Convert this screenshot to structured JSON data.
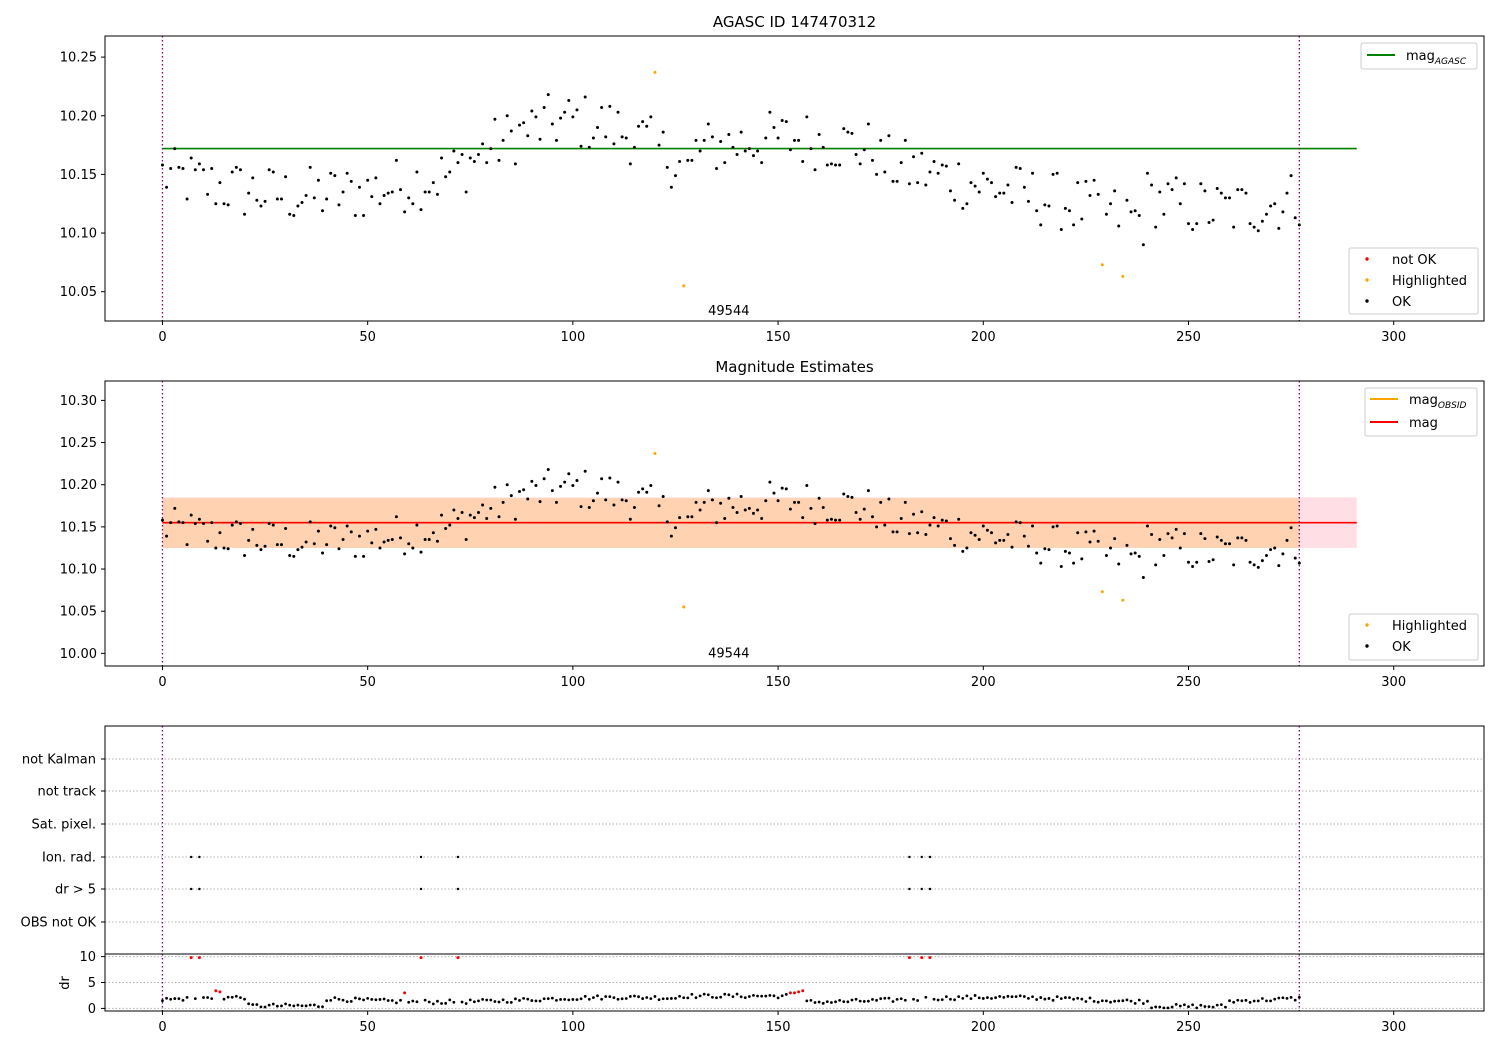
{
  "chart_data": [
    {
      "type": "scatter",
      "title": "AGASC ID 147470312",
      "xlim": [
        -14,
        322
      ],
      "ylim": [
        10.025,
        10.268
      ],
      "xticks": [
        0,
        50,
        100,
        150,
        200,
        250,
        300
      ],
      "xtick_labels": [
        "0",
        "50",
        "100",
        "150",
        "200",
        "250",
        "300"
      ],
      "yticks": [
        10.05,
        10.1,
        10.15,
        10.2,
        10.25
      ],
      "ytick_labels": [
        "10.05",
        "10.10",
        "10.15",
        "10.20",
        "10.25"
      ],
      "obsid_boundaries": [
        0,
        277
      ],
      "obsid_label": {
        "text": "49544",
        "x": 138,
        "y": 10.03
      },
      "hlines": [
        {
          "name": "mag",
          "subscript": "AGASC",
          "y": 10.172,
          "x0": 0,
          "x1": 291,
          "color": "#008000"
        }
      ],
      "legend_upper": {
        "placement": "upper-right"
      },
      "legend_lower": {
        "placement": "lower-right",
        "entries": [
          {
            "label": "not OK",
            "color": "#ff0000"
          },
          {
            "label": "Highlighted",
            "color": "#ffa500"
          },
          {
            "label": "OK",
            "color": "#000000"
          }
        ]
      },
      "series": [
        {
          "name": "not OK",
          "color": "#ff0000",
          "points": []
        },
        {
          "name": "Highlighted",
          "color": "#ffa500",
          "points": [
            [
              120,
              10.237
            ],
            [
              127,
              10.055
            ],
            [
              229,
              10.073
            ],
            [
              234,
              10.063
            ]
          ]
        },
        {
          "name": "OK",
          "color": "#000000",
          "points": []
        }
      ]
    },
    {
      "type": "scatter",
      "title": "Magnitude Estimates",
      "xlim": [
        -14,
        322
      ],
      "ylim": [
        9.985,
        10.323
      ],
      "xticks": [
        0,
        50,
        100,
        150,
        200,
        250,
        300
      ],
      "xtick_labels": [
        "0",
        "50",
        "100",
        "150",
        "200",
        "250",
        "300"
      ],
      "yticks": [
        10.0,
        10.05,
        10.1,
        10.15,
        10.2,
        10.25,
        10.3
      ],
      "ytick_labels": [
        "10.00",
        "10.05",
        "10.10",
        "10.15",
        "10.20",
        "10.25",
        "10.30"
      ],
      "obsid_boundaries": [
        0,
        277
      ],
      "obsid_label": {
        "text": "49544",
        "x": 138,
        "y": 9.995
      },
      "bands": [
        {
          "name": "mag",
          "y0": 10.125,
          "y1": 10.185,
          "x0": 0,
          "x1": 291,
          "color": "#ffc0cb",
          "opacity": 0.5
        },
        {
          "name": "mag OBSID",
          "y0": 10.125,
          "y1": 10.184,
          "x0": 0,
          "x1": 277,
          "color": "#ffa500",
          "opacity": 0.22
        }
      ],
      "hlines": [
        {
          "name": "mag",
          "subscript": "OBSID",
          "y": 10.155,
          "x0": 0,
          "x1": 277,
          "color": "#ffa500"
        },
        {
          "name": "mag",
          "subscript": "",
          "y": 10.155,
          "x0": 0,
          "x1": 291,
          "color": "#ff0000"
        }
      ],
      "legend_upper": {
        "placement": "upper-right"
      },
      "legend_lower": {
        "placement": "lower-right",
        "entries": [
          {
            "label": "Highlighted",
            "color": "#ffa500"
          },
          {
            "label": "OK",
            "color": "#000000"
          }
        ]
      },
      "series": [
        {
          "name": "Highlighted",
          "color": "#ffa500",
          "points": [
            [
              120,
              10.237
            ],
            [
              127,
              10.055
            ],
            [
              229,
              10.073
            ],
            [
              234,
              10.063
            ]
          ]
        },
        {
          "name": "OK",
          "color": "#000000",
          "points": []
        }
      ]
    },
    {
      "type": "scatter",
      "title": "",
      "xlim": [
        -14,
        322
      ],
      "xticks": [
        0,
        50,
        100,
        150,
        200,
        250,
        300
      ],
      "xtick_labels": [
        "0",
        "50",
        "100",
        "150",
        "200",
        "250",
        "300"
      ],
      "flag_rows": [
        "not Kalman",
        "not track",
        "Sat. pixel.",
        "Ion. rad.",
        "dr > 5",
        "OBS not OK"
      ],
      "flags": {
        "Ion. rad.": [
          7,
          9,
          63,
          72,
          182,
          185,
          187
        ],
        "dr > 5": [
          7,
          9,
          63,
          72,
          182,
          185,
          187
        ]
      },
      "obsid_boundaries": [
        0,
        277
      ],
      "dr": {
        "ylabel": "dr",
        "ylim": [
          -0.5,
          10.5
        ],
        "yticks": [
          0,
          5,
          10
        ],
        "ytick_labels": [
          "0",
          "5",
          "10"
        ],
        "gridlines": [
          0,
          5,
          10
        ],
        "not_ok_color": "#ff0000",
        "ok_color": "#000000",
        "not_ok_points": [
          [
            7,
            9.8
          ],
          [
            9,
            9.8
          ],
          [
            63,
            9.8
          ],
          [
            72,
            9.8
          ],
          [
            182,
            9.8
          ],
          [
            185,
            9.8
          ],
          [
            187,
            9.8
          ],
          [
            13,
            3.4
          ],
          [
            14,
            3.2
          ],
          [
            59,
            3.0
          ],
          [
            153,
            3.0
          ],
          [
            154,
            3.0
          ],
          [
            155,
            3.2
          ],
          [
            156,
            3.4
          ]
        ],
        "ok_points": []
      }
    }
  ]
}
